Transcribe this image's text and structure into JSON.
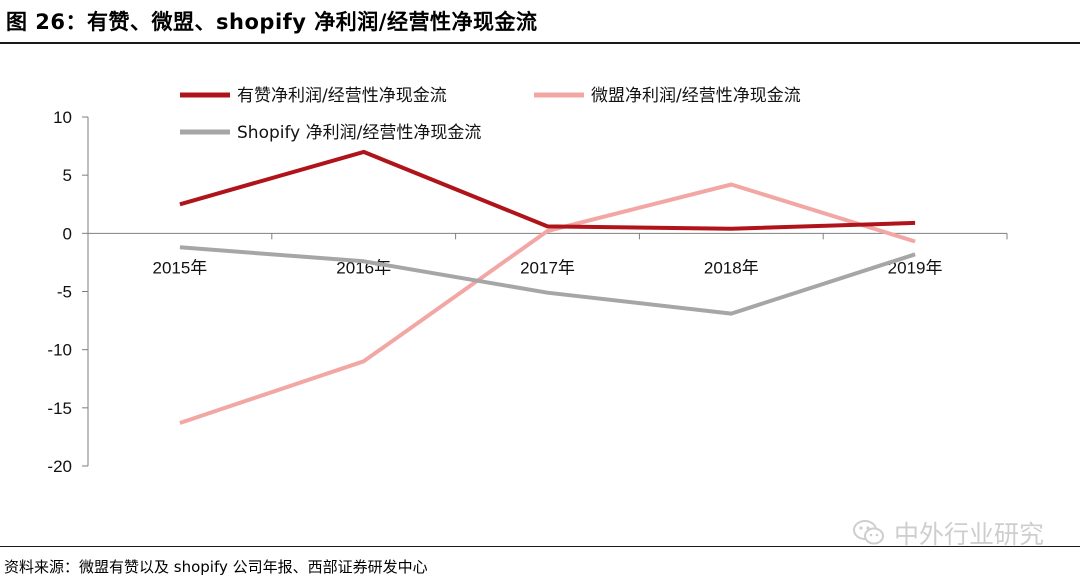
{
  "figure": {
    "title": "图 26：有赞、微盟、shopify 净利润/经营性净现金流",
    "source": "资料来源：微盟有赞以及 shopify 公司年报、西部证券研发中心",
    "watermark": "中外行业研究",
    "watermark_icon": "wechat-icon"
  },
  "chart_data": {
    "type": "line",
    "title": "",
    "xlabel": "",
    "ylabel": "",
    "categories": [
      "2015年",
      "2016年",
      "2017年",
      "2018年",
      "2019年"
    ],
    "ylim": [
      -20,
      10
    ],
    "yticks": [
      10,
      5,
      0,
      -5,
      -10,
      -15,
      -20
    ],
    "grid": false,
    "legend_position": "top",
    "series": [
      {
        "name": "有赞净利润/经营性净现金流",
        "color": "#b0141b",
        "values": [
          2.5,
          7.0,
          0.6,
          0.4,
          0.9
        ]
      },
      {
        "name": "微盟净利润/经营性净现金流",
        "color": "#f2a7a5",
        "values": [
          -16.3,
          -11.0,
          0.2,
          4.2,
          -0.7
        ]
      },
      {
        "name": "Shopify 净利润/经营性净现金流",
        "color": "#a6a6a6",
        "values": [
          -1.2,
          -2.4,
          -5.1,
          -6.9,
          -1.8
        ]
      }
    ]
  }
}
